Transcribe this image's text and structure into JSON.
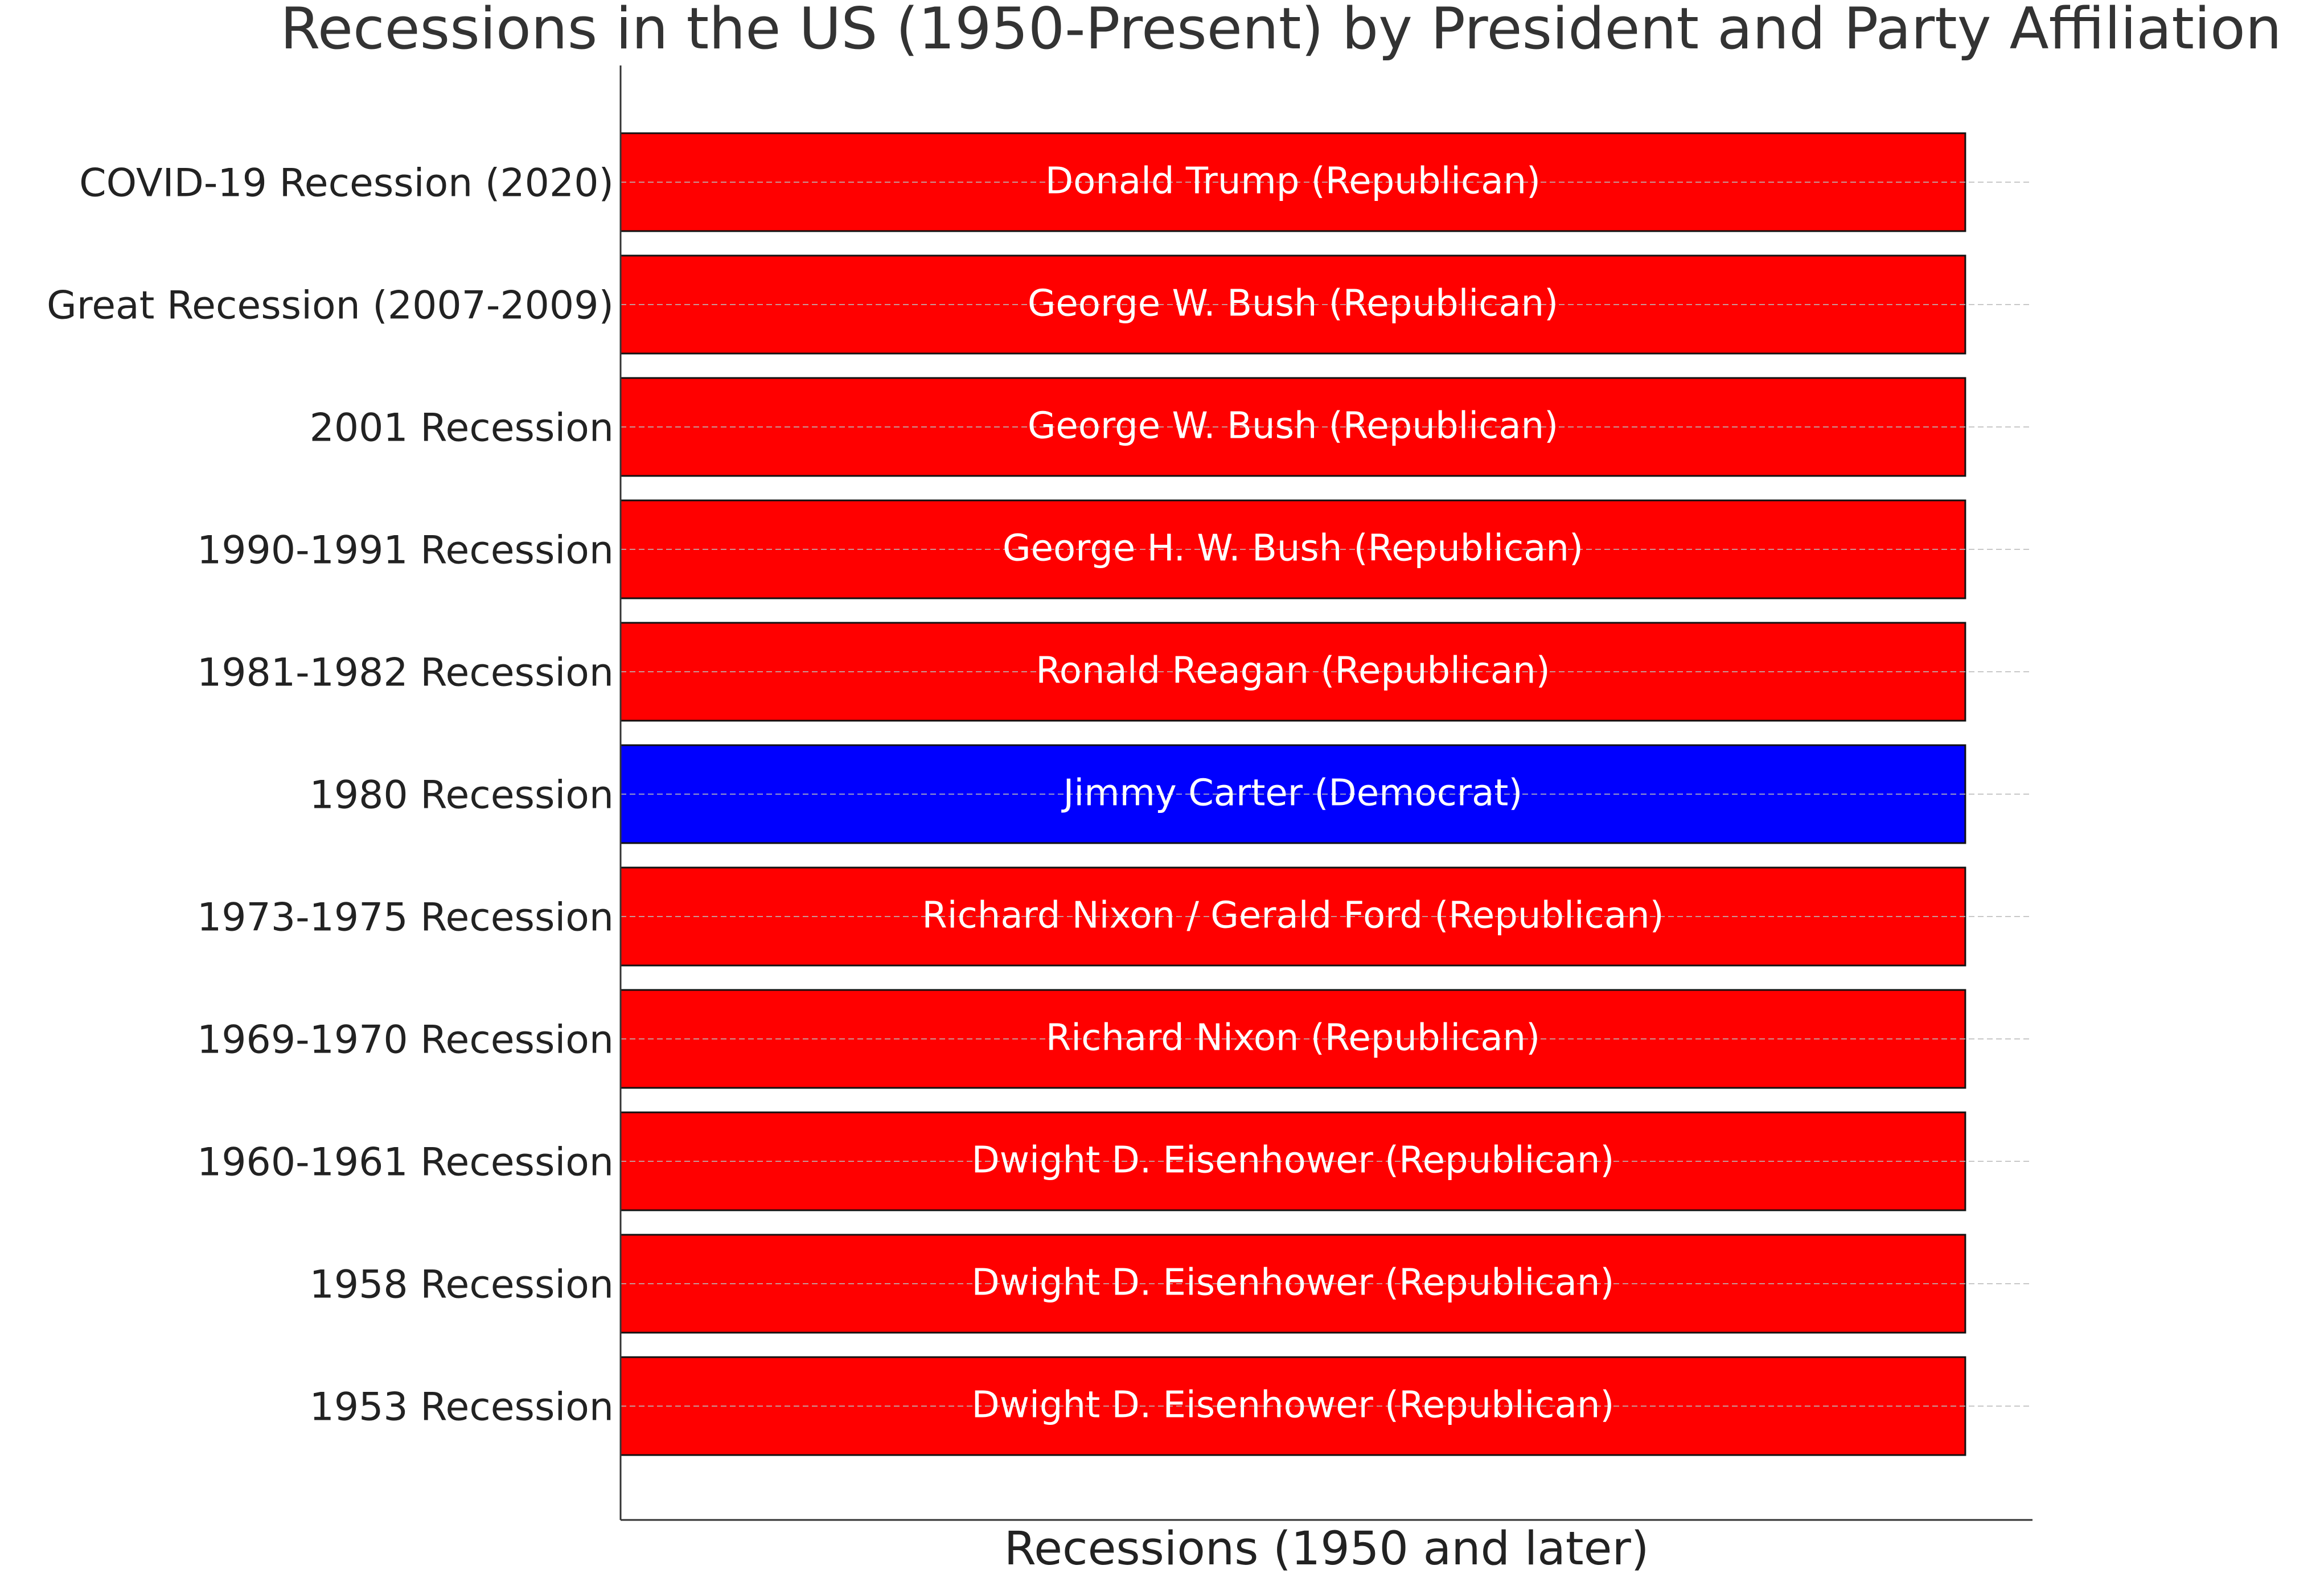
{
  "chart_data": {
    "type": "bar",
    "orientation": "horizontal",
    "title": "Recessions in the US (1950-Present) by President and Party Affiliation",
    "xlabel": "Recessions (1950 and later)",
    "ylabel": "",
    "xlim": [
      0,
      1.05
    ],
    "grid": true,
    "legend": "none",
    "party_colors": {
      "Republican": "#ff0000",
      "Democrat": "#0000ff"
    },
    "categories": [
      "COVID-19 Recession (2020)",
      "Great Recession (2007-2009)",
      "2001 Recession",
      "1990-1991 Recession",
      "1981-1982 Recession",
      "1980 Recession",
      "1973-1975 Recession",
      "1969-1970 Recession",
      "1960-1961 Recession",
      "1958 Recession",
      "1953 Recession"
    ],
    "values": [
      1,
      1,
      1,
      1,
      1,
      1,
      1,
      1,
      1,
      1,
      1
    ],
    "bar_labels": [
      "Donald Trump (Republican)",
      "George W. Bush (Republican)",
      "George W. Bush (Republican)",
      "George H. W. Bush (Republican)",
      "Ronald Reagan (Republican)",
      "Jimmy Carter (Democrat)",
      "Richard Nixon / Gerald Ford (Republican)",
      "Richard Nixon (Republican)",
      "Dwight D. Eisenhower (Republican)",
      "Dwight D. Eisenhower (Republican)",
      "Dwight D. Eisenhower (Republican)"
    ],
    "party": [
      "Republican",
      "Republican",
      "Republican",
      "Republican",
      "Republican",
      "Democrat",
      "Republican",
      "Republican",
      "Republican",
      "Republican",
      "Republican"
    ]
  }
}
